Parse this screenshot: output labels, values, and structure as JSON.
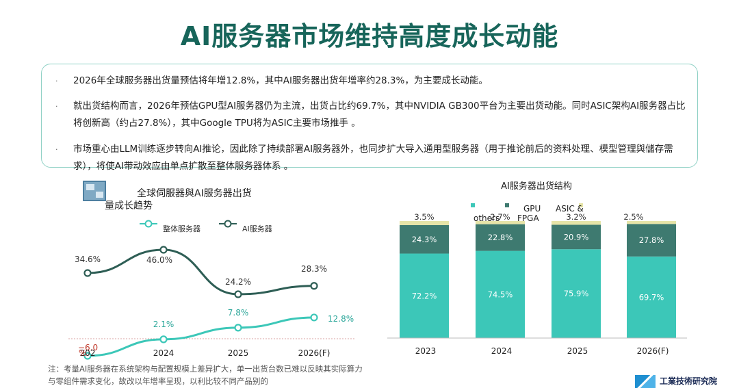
{
  "page": {
    "title": "AI服务器市场维持高度成长动能",
    "bullets": [
      "2026年全球服务器出货量预估将年增12.8%，其中AI服务器出货年增率约28.3%，为主要成长动能。",
      "就出货结构而言，2026年预估GPU型AI服务器仍为主流，出货占比约69.7%，其中NVIDIA  GB300平台为主要出货动能。同时ASIC架构AI服务器占比将创新高（约占27.8%），其中Google TPU将为ASIC主要市场推手 。",
      "市场重心由LLM训练逐步转向AI推论，因此除了持续部署AI服务器外，也同步扩大导入通用型服务器（用于推论前后的资料处理、模型管理與儲存需求），将使AI带动效应由单点扩散至整体服务器体系 。"
    ],
    "bullet_marker": "·",
    "note": "注：考量AI服务器在系统架构与配置规模上差异扩大，单一出货台数已难以反映其实际算力与零组件需求变化，故改以年增率呈现，以利比较不同产品别的",
    "logo_text": "工業技術研究院"
  },
  "chart_data": [
    {
      "type": "line",
      "title": "全球伺服器與AI服务器出货量成长趋势",
      "categories": [
        "202",
        "2024",
        "2025",
        "2026(F)"
      ],
      "axis_prefix": "%",
      "series": [
        {
          "name": "整体服务器",
          "color": "#3cc7b8",
          "values": [
            -6.0,
            2.1,
            7.8,
            12.8
          ],
          "labels": [
            "−6.0",
            "2.1%",
            "7.8%",
            "12.8%"
          ]
        },
        {
          "name": "AI服务器",
          "color": "#2e5e55",
          "values": [
            34.6,
            46.0,
            24.2,
            28.3
          ],
          "labels": [
            "34.6%",
            "46.0%",
            "24.2%",
            "28.3%"
          ]
        }
      ]
    },
    {
      "type": "bar",
      "stacked": true,
      "title": "AI服务器出货结构",
      "categories": [
        "2023",
        "2024",
        "2025",
        "2026(F)"
      ],
      "legend": [
        "others",
        "GPU",
        "FPGA",
        "ASIC &"
      ],
      "series": [
        {
          "name": "GPU",
          "color": "#3cc7b8",
          "values": [
            72.2,
            74.5,
            75.9,
            69.7
          ]
        },
        {
          "name": "ASIC",
          "color": "#3e7a70",
          "values": [
            24.3,
            22.8,
            20.9,
            27.8
          ]
        },
        {
          "name": "FPGA/others",
          "color": "#e6e4a8",
          "values": [
            3.5,
            2.7,
            3.2,
            2.5
          ]
        }
      ]
    }
  ]
}
